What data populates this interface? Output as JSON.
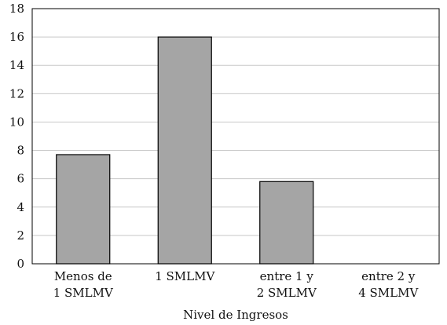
{
  "chart_data": {
    "type": "bar",
    "categories": [
      [
        "Menos de",
        "1 SMLMV"
      ],
      [
        "1 SMLMV"
      ],
      [
        "entre 1 y",
        "2 SMLMV"
      ],
      [
        "entre 2 y",
        "4 SMLMV"
      ]
    ],
    "values": [
      7.7,
      16,
      5.8,
      0
    ],
    "xlabel": "Nivel de Ingresos",
    "ylabel": "",
    "ylim": [
      0,
      18
    ],
    "yticks": [
      0,
      2,
      4,
      6,
      8,
      10,
      12,
      14,
      16,
      18
    ],
    "grid": "horizontal",
    "legend": "none",
    "colors": {
      "bar_fill": "#a5a5a5",
      "bar_stroke": "#000000",
      "grid": "#c8c8c8",
      "frame": "#000000"
    }
  }
}
